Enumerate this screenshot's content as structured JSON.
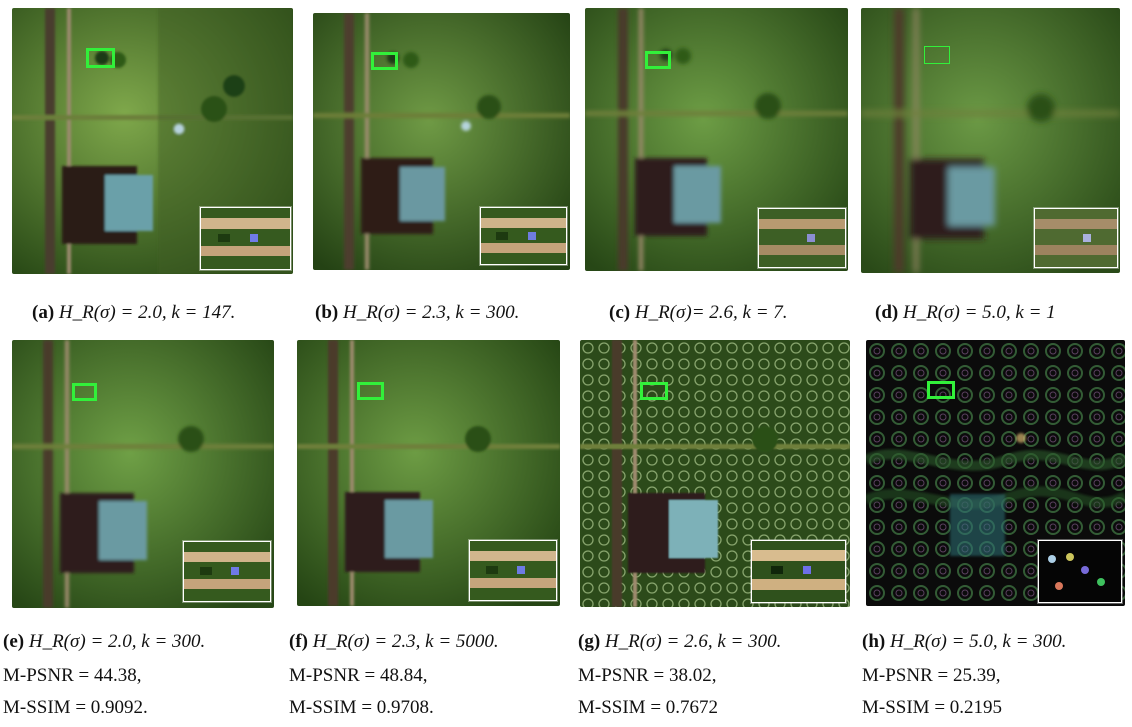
{
  "figure": {
    "rows": [
      {
        "panels": [
          {
            "caption_prefix": "(a)",
            "caption_body": "H_R(σ) = 2.0, k = 147."
          },
          {
            "caption_prefix": "(b)",
            "caption_body": "H_R(σ) = 2.3, k = 300."
          },
          {
            "caption_prefix": "(c)",
            "caption_body": "H_R(σ)= 2.6, k = 7."
          },
          {
            "caption_prefix": "(d)",
            "caption_body": "H_R(σ) = 5.0, k = 1"
          }
        ]
      },
      {
        "panels": [
          {
            "caption_prefix": "(e)",
            "caption_body": "H_R(σ) = 2.0, k = 300.",
            "metric_psnr": "M-PSNR = 44.38,",
            "metric_ssim": "M-SSIM = 0.9092."
          },
          {
            "caption_prefix": "(f)",
            "caption_body": "H_R(σ) = 2.3, k = 5000.",
            "metric_psnr": "M-PSNR = 48.84,",
            "metric_ssim": "M-SSIM = 0.9708."
          },
          {
            "caption_prefix": "(g)",
            "caption_body": "H_R(σ) = 2.6, k = 300.",
            "metric_psnr": "M-PSNR = 38.02,",
            "metric_ssim": "M-SSIM = 0.7672"
          },
          {
            "caption_prefix": "(h)",
            "caption_body": "H_R(σ) = 5.0, k = 300.",
            "metric_psnr": "M-PSNR = 25.39,",
            "metric_ssim": "M-SSIM = 0.2195"
          }
        ]
      }
    ]
  }
}
